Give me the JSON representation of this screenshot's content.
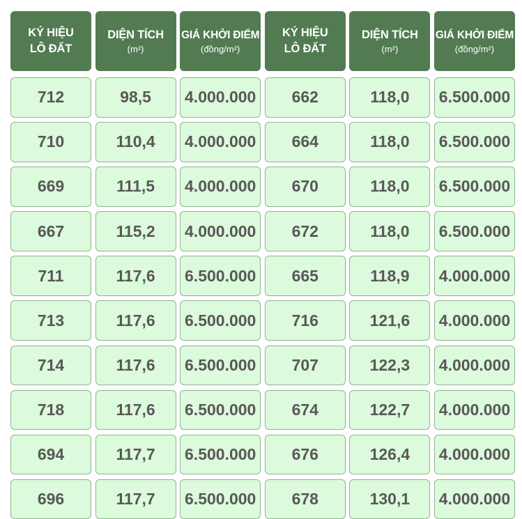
{
  "headers": [
    {
      "main": "KÝ HIỆU\nLÔ ĐẤT",
      "sub": ""
    },
    {
      "main": "DIỆN TÍCH",
      "sub": "(m²)"
    },
    {
      "main": "GIÁ KHỞI ĐIỂM",
      "sub": "(đồng/m²)"
    },
    {
      "main": "KÝ HIỆU\nLÔ ĐẤT",
      "sub": ""
    },
    {
      "main": "DIỆN TÍCH",
      "sub": "(m²)"
    },
    {
      "main": "GIÁ KHỞI ĐIỂM",
      "sub": "(đồng/m²)"
    }
  ],
  "rows": [
    [
      "712",
      "98,5",
      "4.000.000",
      "662",
      "118,0",
      "6.500.000"
    ],
    [
      "710",
      "110,4",
      "4.000.000",
      "664",
      "118,0",
      "6.500.000"
    ],
    [
      "669",
      "111,5",
      "4.000.000",
      "670",
      "118,0",
      "6.500.000"
    ],
    [
      "667",
      "115,2",
      "4.000.000",
      "672",
      "118,0",
      "6.500.000"
    ],
    [
      "711",
      "117,6",
      "6.500.000",
      "665",
      "118,9",
      "4.000.000"
    ],
    [
      "713",
      "117,6",
      "6.500.000",
      "716",
      "121,6",
      "4.000.000"
    ],
    [
      "714",
      "117,6",
      "6.500.000",
      "707",
      "122,3",
      "4.000.000"
    ],
    [
      "718",
      "117,6",
      "6.500.000",
      "674",
      "122,7",
      "4.000.000"
    ],
    [
      "694",
      "117,7",
      "6.500.000",
      "676",
      "126,4",
      "4.000.000"
    ],
    [
      "696",
      "117,7",
      "6.500.000",
      "678",
      "130,1",
      "4.000.000"
    ]
  ]
}
